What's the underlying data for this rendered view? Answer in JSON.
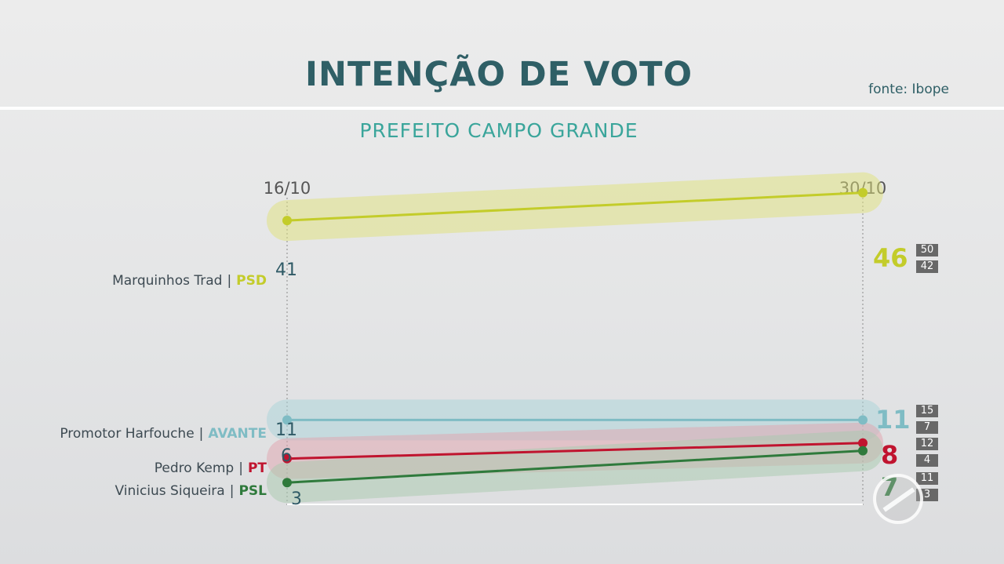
{
  "header": {
    "title": "INTENÇÃO DE VOTO",
    "source": "fonte: Ibope",
    "subtitle": "PREFEITO CAMPO GRANDE"
  },
  "chart_data": {
    "type": "line",
    "title": "INTENÇÃO DE VOTO",
    "subtitle": "PREFEITO CAMPO GRANDE",
    "x": [
      "16/10",
      "30/10"
    ],
    "series": [
      {
        "name": "Marquinhos Trad",
        "party": "PSD",
        "color": "#c3cc2a",
        "bandColor": "#dfe27a",
        "values": [
          41,
          46
        ],
        "range": {
          "max": "50",
          "min": "42"
        },
        "start_label": "41",
        "end_label": "46"
      },
      {
        "name": "Promotor Harfouche",
        "party": "AVANTE",
        "color": "#7fbcc4",
        "bandColor": "#a9d4d9",
        "values": [
          11,
          11
        ],
        "range": {
          "max": "15",
          "min": "7"
        },
        "start_label": "11",
        "end_label": "11"
      },
      {
        "name": "Pedro Kemp",
        "party": "PT",
        "color": "#c0142f",
        "bandColor": "#e2a3ad",
        "values": [
          6,
          8
        ],
        "range": {
          "max": "12",
          "min": "4"
        },
        "start_label": "6",
        "end_label": "8"
      },
      {
        "name": "Vinicius Siqueira",
        "party": "PSL",
        "color": "#2f7a3c",
        "bandColor": "#a7c9ad",
        "values": [
          3,
          7
        ],
        "range": {
          "max": "11",
          "min": "3"
        },
        "start_label": "3",
        "end_label": "7"
      }
    ]
  }
}
